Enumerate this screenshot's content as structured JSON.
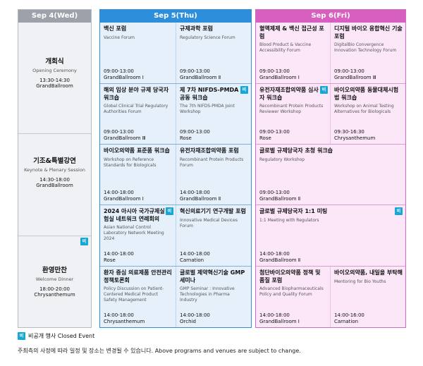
{
  "days": [
    {
      "header": "Sep 4(Wed)",
      "color": "#9da2aa"
    },
    {
      "header": "Sep 5(Thu)",
      "color": "#2d8fdc"
    },
    {
      "header": "Sep 6(Fri)",
      "color": "#d75fc0"
    }
  ],
  "sep4": [
    {
      "title": "개회식",
      "subtitle": "Opening Ceremony",
      "time": "13:30-14:30",
      "venue": "GrandBallroom"
    },
    {
      "title": "기조&특별강연",
      "subtitle": "Keynote & Plenary Session",
      "time": "14:30-18:00",
      "venue": "GrandBallroom"
    },
    {
      "title": "환영만찬",
      "subtitle": "Welcome Dinner",
      "time": "18:00-20:00",
      "venue": "Chrysanthemum",
      "badge": "비"
    }
  ],
  "sep5": [
    {
      "title": "백신 포럼",
      "en": "Vaccine Forum",
      "time": "09:00-13:00",
      "venue": "GrandBallroom Ⅰ"
    },
    {
      "title": "규제과학 포럼",
      "en": "Regulatory Science Forum",
      "time": "09:00-13:00",
      "venue": "GrandBallroom Ⅱ"
    },
    {
      "title": "해외 임상 분야 규제 당국자 워크숍",
      "en": "Global Clinical Trial Regulatory Authorities Forum",
      "time": "09:00-13:00",
      "venue": "GrandBallroom Ⅲ"
    },
    {
      "title": "제 7차 NIFDS-PMDA 공동 워크숍",
      "en": "The 7th NIFDS-PMDA Joint Workshop",
      "time": "09:00-13:00",
      "venue": "Rose",
      "badge": "비"
    },
    {
      "title": "바이오의약품 표준품 워크숍",
      "en": "Workshop on Reference Standards for Biologicals",
      "time": "14:00-18:00",
      "venue": "GrandBallroom Ⅰ"
    },
    {
      "title": "유전자재조합의약품 포럼",
      "en": "Recombinant Protein Products Forum",
      "time": "14:00-18:00",
      "venue": "GrandBallroom Ⅱ"
    },
    {
      "title": "2024 아시아 국가규제실험실 네트워크 연례회의",
      "en": "Asian National Control Laboratory Network Meeting 2024",
      "time": "14:00-18:00",
      "venue": "Rose",
      "badge": "비"
    },
    {
      "title": "혁신의료기기 연구개발 포럼",
      "en": "Innovative Medical Devices Forum",
      "time": "14:00-18:00",
      "venue": "Carnation"
    },
    {
      "title": "환자 중심 의료제품 안전관리 정책토론회",
      "en": "Policy Discussion on Patient-Centered Medical Product Safety Management",
      "time": "14:00-18:00",
      "venue": "Chrysanthemum"
    },
    {
      "title": "글로벌 제약혁신기술 GMP 세미나",
      "en": "GMP Seminar : Innovative Technologies in Pharma Industry",
      "time": "14:00-18:00",
      "venue": "Orchid"
    }
  ],
  "sep6": [
    {
      "title": "혈액제제 & 백신 접근성 포럼",
      "en": "Blood Product & Vaccine Accessibility Forum",
      "time": "09:00-13:00",
      "venue": "GrandBallroom Ⅰ"
    },
    {
      "title": "디지털 바이오 융합혁신 기술 포럼",
      "en": "DigitalBio Convergence Innovation Technology Forum",
      "time": "09:00-13:00",
      "venue": "GrandBallroom Ⅲ"
    },
    {
      "title": "유전자재조합의약품 심사자 워크숍",
      "en": "Recombinant Protein Products Reviewer Workshop",
      "time": "09:00-13:00",
      "venue": "Rose",
      "badge": "비"
    },
    {
      "title": "바이오의약품 동물대체시험법 워크숍",
      "en": "Workshop on Animal Testing Alternatives for Biologicals",
      "time": "09:30-16:30",
      "venue": "Chrysanthemum"
    },
    {
      "title": "글로벌 규제당국자 초청 워크숍",
      "en": "Regulatory Workshop",
      "time": "09:00-13:00",
      "venue": "GrandBallroom Ⅱ"
    },
    {
      "title": "글로벌 규제당국자 1:1 미팅",
      "en": "1:1 Meeting with Regulators",
      "time": "14:00-18:00",
      "venue": "GrandBallroom Ⅱ",
      "badge": "비"
    },
    {
      "title": "첨단바이오의약품 정책 및 품질 포럼",
      "en": "Advanced Biopharmaceuticals Policy and Quality Forum",
      "time": "14:00-18:00",
      "venue": "GrandBallroom Ⅰ"
    },
    {
      "title": "바이오의약품, 내일을 부탁해",
      "en": "Mentoring for Bio Youths",
      "time": "14:00-16:00",
      "venue": "Carnation"
    }
  ],
  "legend": {
    "badge": "비",
    "label": "비공개 행사 Closed Event"
  },
  "note": "주최측의 사정에 따라 일정 및 장소는 변경될 수 있습니다. Above programs and venues are subject to change."
}
